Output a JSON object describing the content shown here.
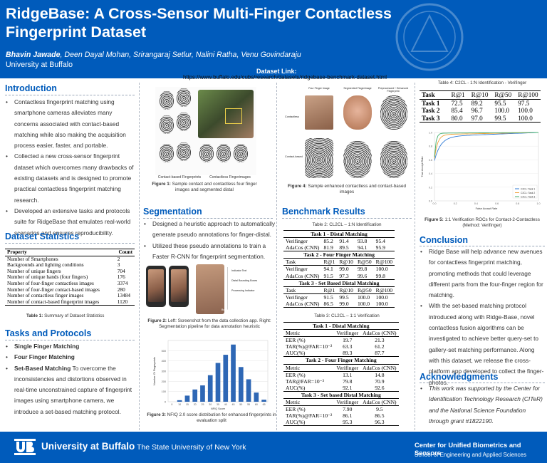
{
  "header": {
    "title": "RidgeBase: A Cross-Sensor Multi-Finger Contactless Fingerprint Dataset",
    "authors_lead": "Bhavin Jawade",
    "authors_rest": ", Deen Dayal Mohan, Srirangaraj Setlur, Nalini Ratha, Venu Govindaraju",
    "affiliation": "University at Buffalo",
    "dataset_link_label": "Dataset Link:",
    "dataset_link_url": "https://www.buffalo.edu/cubs/research/datasets/ridgebase-benchmark-dataset.html"
  },
  "introduction": {
    "heading": "Introduction",
    "bullets": [
      "Contactless fingerprint matching using smartphone cameras alleviates many concerns associated with contact-based matching while also making the acquisition process easier, faster, and portable.",
      "Collected a new cross-sensor fingerprint dataset which overcomes many drawbacks of existing datasets and is designed to promote practical contactless fingerprint matching research.",
      "Developed an extensive tasks and protocols suite for RidgeBase that emulates real-world scenarios and ensures reproducibility."
    ]
  },
  "dataset_statistics": {
    "heading": "Dataset Statistics",
    "table_headers": [
      "Property",
      "Count"
    ],
    "rows": [
      [
        "Number of Smartphones",
        "2"
      ],
      [
        "Backgrounds and lighting conditions",
        "3"
      ],
      [
        "Number of unique fingers",
        "704"
      ],
      [
        "Number of unique hands (four fingers)",
        "176"
      ],
      [
        "Number of four-finger contactless images",
        "3374"
      ],
      [
        "Number of four-finger contact-based images",
        "280"
      ],
      [
        "Number of contactless finger images",
        "13484"
      ],
      [
        "Number of contact-based fingerprint images",
        "1120"
      ]
    ],
    "caption_label": "Table 1:",
    "caption_text": " Summary of Dataset Statistics"
  },
  "tasks": {
    "heading": "Tasks and Protocols",
    "b1": "Single Finger Matching",
    "b2": "Four Finger Matching",
    "b3_bold": "Set-Based Matching",
    "b3_rest": " To overcome the inconsistencies and distortions observed in real-time unconstrained capture of fingerprint images using smartphone camera, we introduce a set-based matching protocol."
  },
  "figure1": {
    "label_left": "Contact-based Fingerprints",
    "label_right": "Contactless Fingerimages",
    "caption_label": "Figure 1:",
    "caption_text": " Sample contact and contactless four finger images and segmented distal"
  },
  "segmentation": {
    "heading": "Segmentation",
    "bullets": [
      "Designed a heuristic approach to automatically generate pseudo annotations for finger-distal.",
      "Utilized these pseudo annotations to train a Faster R-CNN for fingerprint segmentation."
    ],
    "fig2_labels": [
      "Indicator Text",
      "Distal Bounding Boxes",
      "Processing Indicator",
      "Bounding Boxes"
    ],
    "fig2_caption_label": "Figure 2:",
    "fig2_caption_text": " Left: Screenshot from the data collection app. Right: Segmentation pipeline for data annotation heuristic"
  },
  "figure3": {
    "caption_label": "Figure 3:",
    "caption_text": " NFIQ 2.0 score distribution for enhanced fingerprints in evaluation split",
    "ylabel": "Number Of Fingerprints",
    "xlabel": "NFIQ Score"
  },
  "chart_data": {
    "type": "bar",
    "categories": [
      "0",
      "10",
      "15",
      "20",
      "25",
      "30",
      "35",
      "40",
      "45",
      "50",
      "55",
      "60",
      "65"
    ],
    "values": [
      0,
      15,
      60,
      120,
      160,
      260,
      380,
      460,
      560,
      340,
      220,
      90,
      20
    ],
    "ylim": [
      0,
      600
    ],
    "yticks": [
      "0",
      "100",
      "200",
      "300",
      "400",
      "500"
    ],
    "xlabel": "NFIQ Score",
    "ylabel": "Number Of Fingerprints",
    "color": "#2e67b5"
  },
  "figure4": {
    "col_labels": [
      "Four Finger Image",
      "Segmented Fingerimage",
      "Preprocessed + Enhanced Fingerprint"
    ],
    "row_labels": [
      "Contactless",
      "Contact-based"
    ],
    "caption_label": "Figure 4:",
    "caption_text": " Sample enhanced contactless and contact-based images"
  },
  "benchmark": {
    "heading": "Benchmark Results",
    "table2_caption": "Table 2: CL2CL – 1:N Identification",
    "table2_headers": [
      "Task",
      "R@1",
      "R@10",
      "R@50",
      "R@100"
    ],
    "table2_groups": [
      {
        "title": "Task 1 - Distal Matching",
        "rows": [
          [
            "Verifinger",
            "85.2",
            "91.4",
            "93.8",
            "95.4"
          ],
          [
            "AdaCos (CNN)",
            "81.9",
            "89.5",
            "94.1",
            "95.9"
          ]
        ]
      },
      {
        "title": "Task 2 - Four Finger Matching",
        "rows": [
          [
            "Verifinger",
            "94.1",
            "99.0",
            "99.8",
            "100.0"
          ],
          [
            "AdaCos (CNN)",
            "91.5",
            "97.3",
            "99.6",
            "99.8"
          ]
        ]
      },
      {
        "title": "Task 3 - Set Based Distal Matching",
        "rows": [
          [
            "Verifinger",
            "91.5",
            "99.5",
            "100.0",
            "100.0"
          ],
          [
            "AdaCos (CNN)",
            "86.5",
            "99.0",
            "100.0",
            "100.0"
          ]
        ]
      }
    ],
    "table3_caption": "Table 3: CL2CL – 1:1 Verification",
    "table3_headers": [
      "Metric",
      "Verifinger",
      "AdaCos (CNN)"
    ],
    "table3_groups": [
      {
        "title": "Task 1 - Distal Matching",
        "rows": [
          [
            "EER (%)",
            "19.7",
            "21.3"
          ],
          [
            "TAR(%)@FAR=10⁻²",
            "63.3",
            "61.2"
          ],
          [
            "AUC(%)",
            "89.3",
            "87.7"
          ]
        ]
      },
      {
        "title": "Task 2 - Four Finger Matching",
        "rows": [
          [
            "EER (%)",
            "13.1",
            "14.8"
          ],
          [
            "TAR@FAR=10⁻³",
            "79.8",
            "70.9"
          ],
          [
            "AUC(%)",
            "92.1",
            "92.6"
          ]
        ]
      },
      {
        "title": "Task 3 - Set based Distal Matching",
        "rows": [
          [
            "EER (%)",
            "7.90",
            "9.5"
          ],
          [
            "TAR(%)@FAR=10⁻²",
            "86.1",
            "86.5"
          ],
          [
            "AUC(%)",
            "95.3",
            "96.3"
          ]
        ]
      }
    ]
  },
  "table4": {
    "caption": "Table 4: C2CL - 1:N Identification - Verifinger",
    "headers": [
      "Task",
      "R@1",
      "R@10",
      "R@50",
      "R@100"
    ],
    "rows": [
      [
        "Task 1",
        "72.5",
        "89.2",
        "95.5",
        "97.5"
      ],
      [
        "Task 2",
        "85.4",
        "96.7",
        "100.0",
        "100.0"
      ],
      [
        "Task 3",
        "80.0",
        "97.0",
        "99.5",
        "100.0"
      ]
    ]
  },
  "figure5": {
    "caption_label": "Figure 5:",
    "caption_text": " 1:1 Verification ROCs for Contact-2-Contactless (Method: Verifinger)",
    "ylabel": "True Accept Rate",
    "xlabel": "False Accept Rate",
    "legend": [
      "C2CL: Task 1",
      "C2CL: Task 2",
      "C2CL: Task 3"
    ],
    "colors": [
      "#2f7bd6",
      "#f0a23a",
      "#3fae6a"
    ]
  },
  "conclusion": {
    "heading": "Conclusion",
    "bullets": [
      "Ridge Base will help advance new avenues for contactless fingerprint matching, promoting methods that could leverage different parts from the four-finger region for matching.",
      "With the set-based matching protocol introduced along with Ridge-Base, novel contactless fusion algorithms can be investigated to achieve better query-set to gallery-set matching performance. Along with this dataset, we release the cross-platform app developed to collect the finger-photos."
    ]
  },
  "acknowledgments": {
    "heading": "Acknowledgments",
    "text": "This work was supported by the Center for Identification Technology Research (CITeR) and the National Science Foundation through grant #1822190."
  },
  "footer": {
    "ub_name": "University at Buffalo",
    "suny": " The State University of New York",
    "center": "Center for Unified Biometrics and Sensors",
    "school": "School of Engineering and Applied Sciences"
  }
}
